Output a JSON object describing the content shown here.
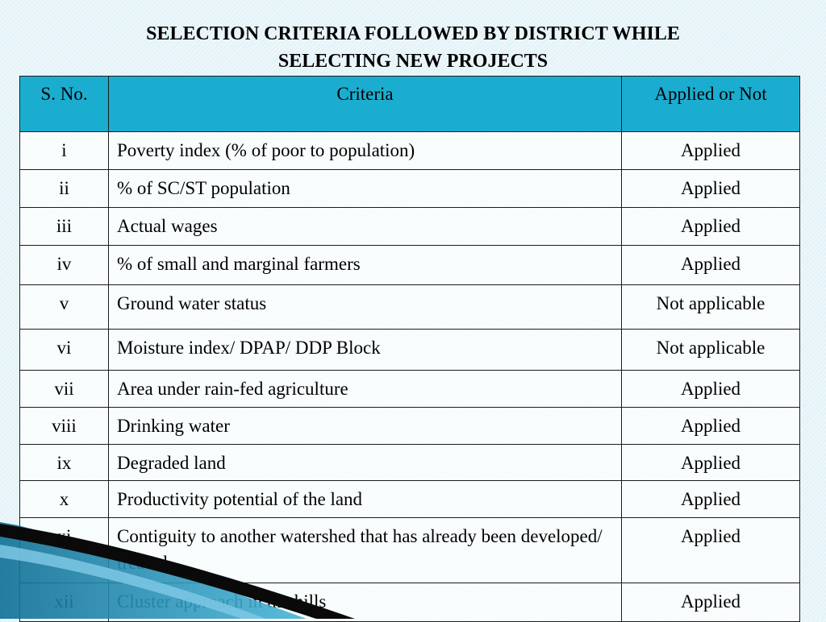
{
  "title": {
    "line1": "SELECTION CRITERIA FOLLOWED BY  DISTRICT WHILE",
    "line2": "SELECTING NEW PROJECTS"
  },
  "table": {
    "headers": [
      "S. No.",
      "Criteria",
      "Applied or Not"
    ],
    "rows": [
      [
        "i",
        "Poverty index (% of poor to population)",
        "Applied"
      ],
      [
        "ii",
        "% of SC/ST population",
        "Applied"
      ],
      [
        "iii",
        "Actual wages",
        "Applied"
      ],
      [
        "iv",
        "% of small and marginal farmers",
        "Applied"
      ],
      [
        "v",
        "Ground water status",
        "Not applicable"
      ],
      [
        "vi",
        "Moisture index/ DPAP/ DDP Block",
        "Not applicable"
      ],
      [
        "vii",
        "Area under rain-fed agriculture",
        "Applied"
      ],
      [
        "viii",
        "Drinking water",
        "Applied"
      ],
      [
        "ix",
        "Degraded land",
        "Applied"
      ],
      [
        "x",
        "Productivity potential of the land",
        "Applied"
      ],
      [
        "xi",
        "Contiguity to another watershed that has already been developed/ treated",
        "Applied"
      ],
      [
        "xii",
        "Cluster approach in the hills",
        "Applied"
      ]
    ]
  },
  "colors": {
    "header_bg": "#1badd0",
    "slide_bg": "#e4f3f8"
  }
}
